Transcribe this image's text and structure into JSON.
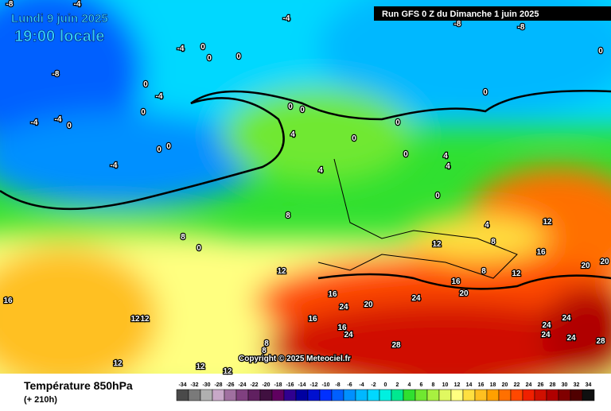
{
  "header": {
    "date": "Lundi 9 juin 2025",
    "time": "19:00 locale",
    "run": "Run GFS 0 Z du Dimanche 1 juin 2025"
  },
  "copyright": "Copyright © 2025 Meteociel.fr",
  "footer": {
    "title": "Température 850hPa",
    "lead": "(+ 210h)"
  },
  "legend": {
    "steps": [
      {
        "value": -34,
        "color": "#4a4a4a"
      },
      {
        "value": -32,
        "color": "#7a7a7a"
      },
      {
        "value": -30,
        "color": "#b0b0b0"
      },
      {
        "value": -28,
        "color": "#c8a8c8"
      },
      {
        "value": -26,
        "color": "#a070a0"
      },
      {
        "value": -24,
        "color": "#804080"
      },
      {
        "value": -22,
        "color": "#602060"
      },
      {
        "value": -20,
        "color": "#401040"
      },
      {
        "value": -18,
        "color": "#600060"
      },
      {
        "value": -16,
        "color": "#300090"
      },
      {
        "value": -14,
        "color": "#0000a0"
      },
      {
        "value": -12,
        "color": "#0010d0"
      },
      {
        "value": -10,
        "color": "#0030ff"
      },
      {
        "value": -8,
        "color": "#0060ff"
      },
      {
        "value": -6,
        "color": "#0090ff"
      },
      {
        "value": -4,
        "color": "#00b8ff"
      },
      {
        "value": -2,
        "color": "#00d8ff"
      },
      {
        "value": 0,
        "color": "#00f0e0"
      },
      {
        "value": 2,
        "color": "#00e890"
      },
      {
        "value": 4,
        "color": "#30e030"
      },
      {
        "value": 6,
        "color": "#70e830"
      },
      {
        "value": 8,
        "color": "#a8f040"
      },
      {
        "value": 10,
        "color": "#e0f860"
      },
      {
        "value": 12,
        "color": "#ffff80"
      },
      {
        "value": 14,
        "color": "#ffe040"
      },
      {
        "value": 16,
        "color": "#ffc020"
      },
      {
        "value": 18,
        "color": "#ffa000"
      },
      {
        "value": 20,
        "color": "#ff7000"
      },
      {
        "value": 22,
        "color": "#ff4800"
      },
      {
        "value": 24,
        "color": "#f02000"
      },
      {
        "value": 26,
        "color": "#d01000"
      },
      {
        "value": 28,
        "color": "#b00000"
      },
      {
        "value": 30,
        "color": "#800000"
      },
      {
        "value": 32,
        "color": "#500000"
      },
      {
        "value": 34,
        "color": "#101010"
      }
    ]
  },
  "map_labels": [
    -8,
    -4,
    -8,
    -8,
    -4,
    -4,
    -4,
    -8,
    0,
    0,
    0,
    0,
    0,
    0,
    0,
    0,
    0,
    0,
    0,
    0,
    0,
    0,
    0,
    0,
    0,
    4,
    4,
    4,
    4,
    4,
    8,
    8,
    8,
    8,
    12,
    12,
    12,
    12,
    12,
    12,
    12,
    12,
    12,
    16,
    16,
    16,
    16,
    16,
    16,
    20,
    20,
    20,
    20,
    24,
    24,
    24,
    24,
    24,
    24,
    24,
    28,
    28,
    -4,
    -4,
    -4,
    8,
    8
  ]
}
